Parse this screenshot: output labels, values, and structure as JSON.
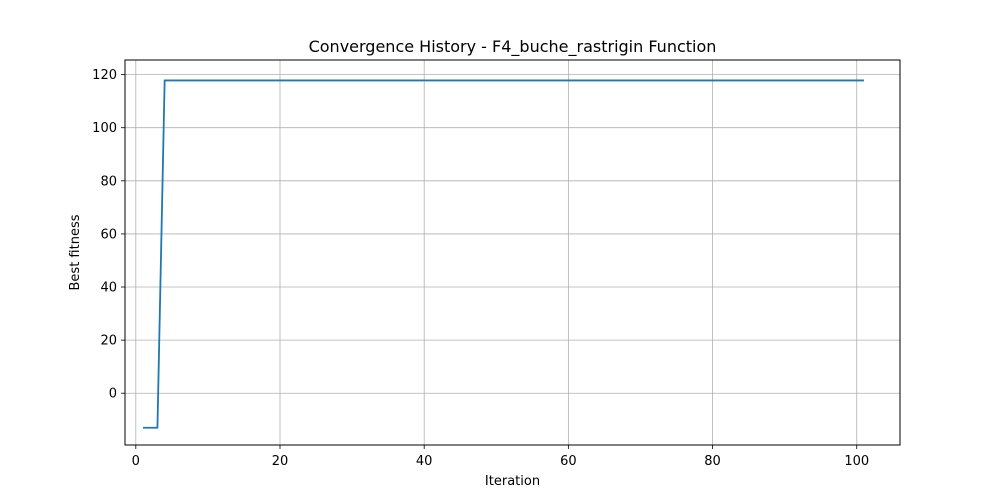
{
  "chart_data": {
    "type": "line",
    "title": "Convergence History - F4_buche_rastrigin Function",
    "xlabel": "Iteration",
    "ylabel": "Best fitness",
    "xlim": [
      -1.5,
      106
    ],
    "ylim": [
      -19.5,
      125.5
    ],
    "xticks": [
      0,
      20,
      40,
      60,
      80,
      100
    ],
    "yticks": [
      0,
      20,
      40,
      60,
      80,
      100,
      120
    ],
    "grid": true,
    "series": [
      {
        "color": "#1f77b4",
        "x": [
          1,
          2,
          3,
          4,
          101
        ],
        "y": [
          -13,
          -13,
          -13,
          117.8,
          117.8
        ]
      }
    ]
  }
}
